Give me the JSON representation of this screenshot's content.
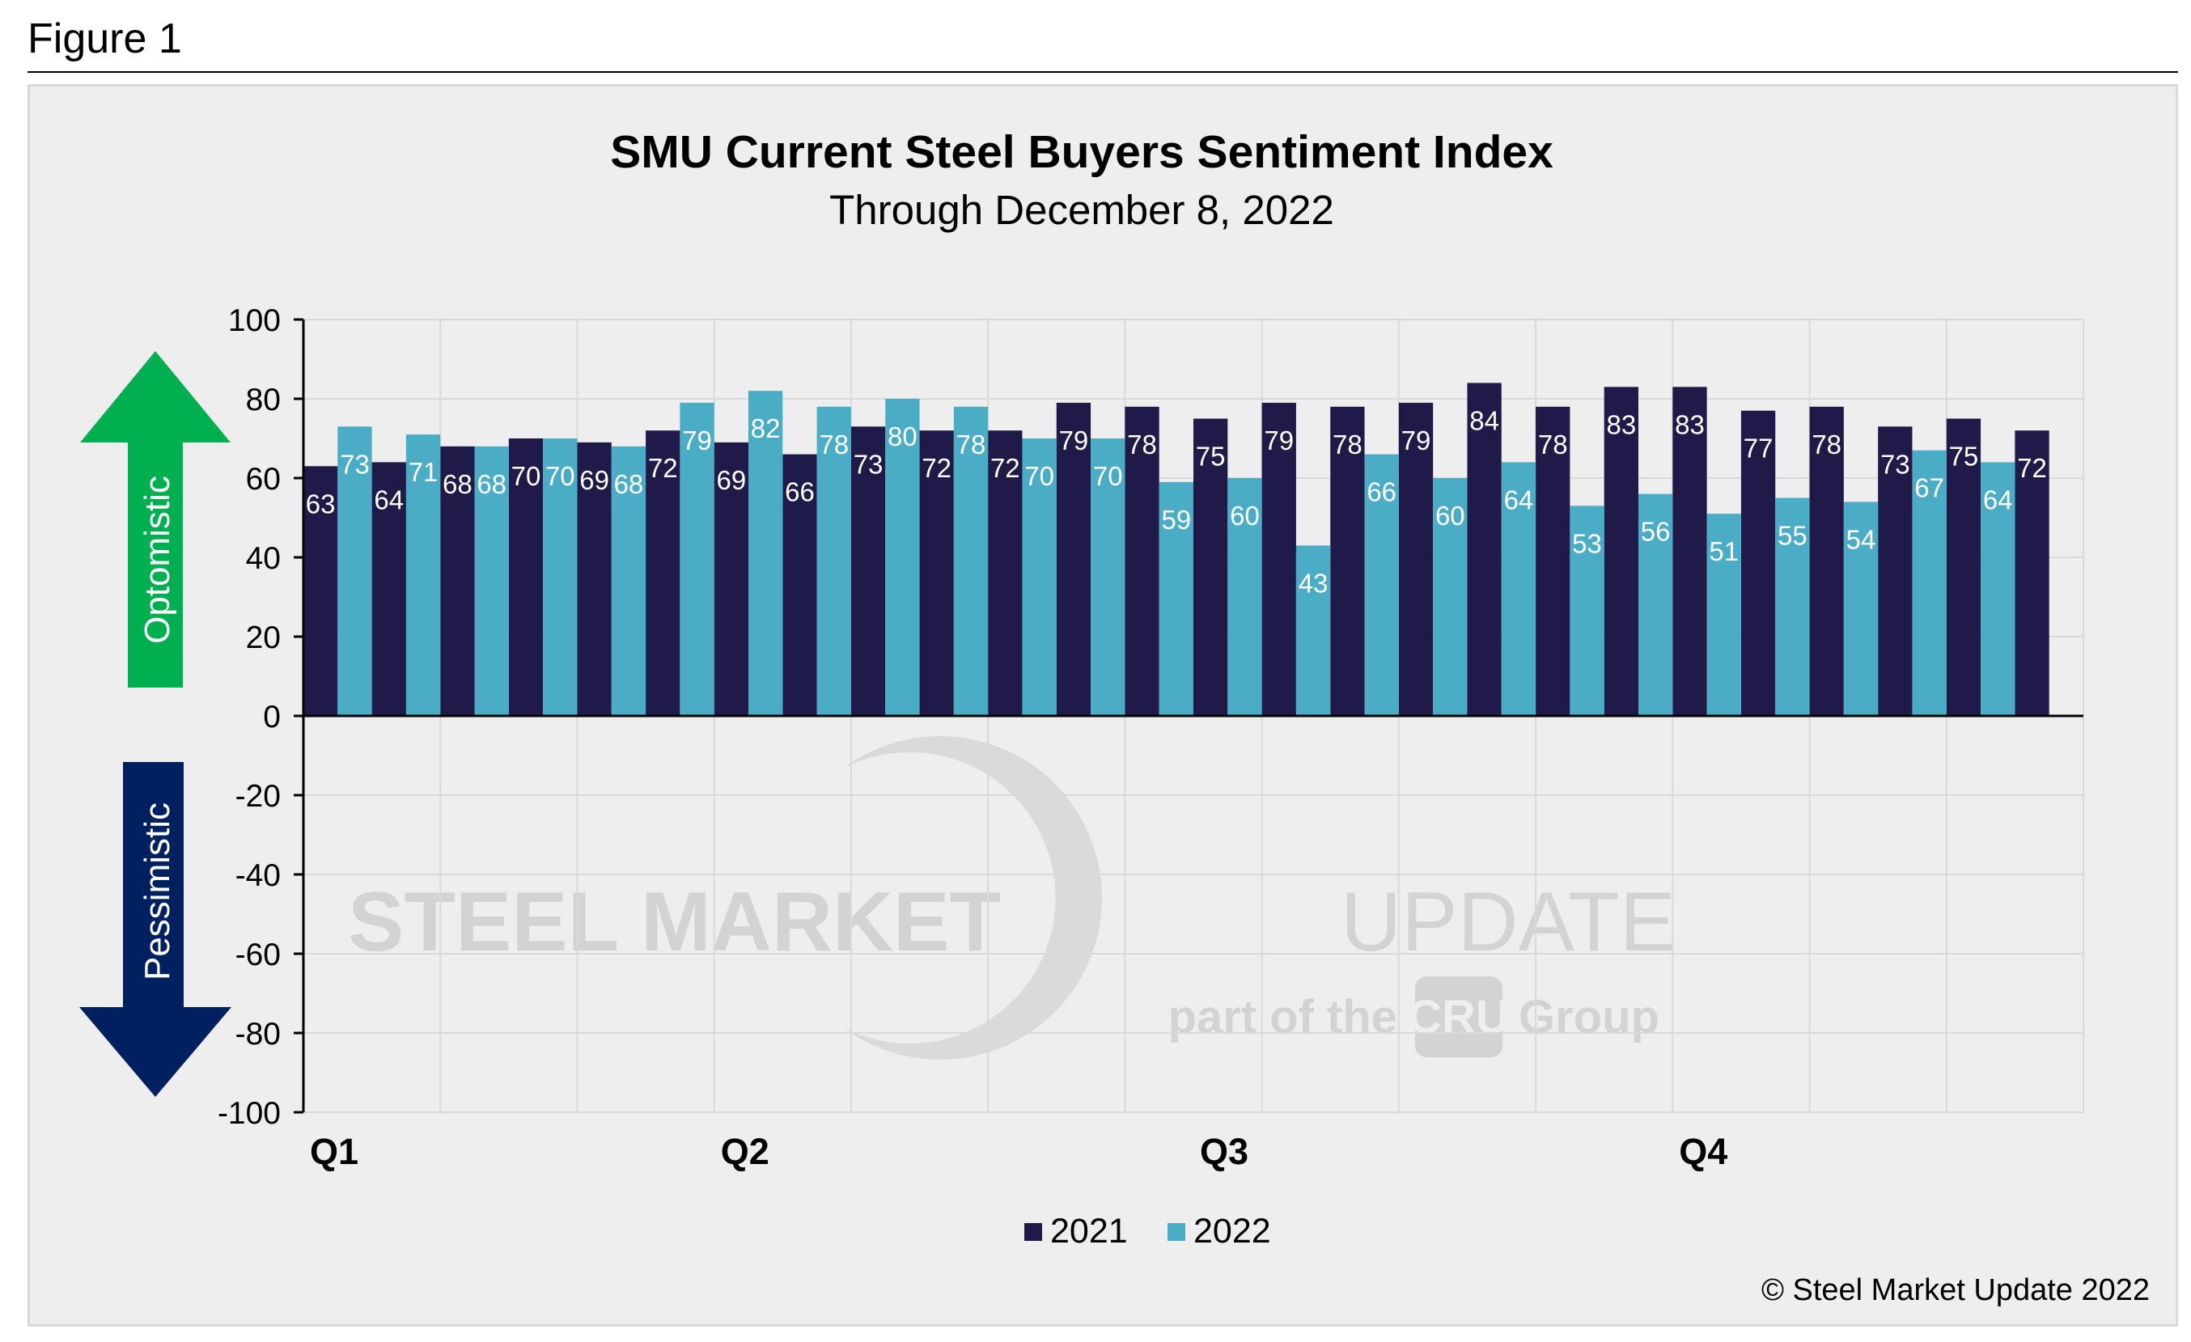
{
  "figure_label": "Figure 1",
  "copyright": "© Steel Market Update 2022",
  "watermark": {
    "line1_bold": "STEEL MARKET",
    "line1_light": "UPDATE",
    "line2_pre": "part of the",
    "line2_logo": "CRU",
    "line2_post": "Group"
  },
  "arrows": {
    "up_label": "Optomistic",
    "up_color": "#00b050",
    "down_label": "Pessimistic",
    "down_color": "#002060"
  },
  "colors": {
    "series_2021": "#1f1a48",
    "series_2022": "#4bacc6",
    "background": "#eeeeee",
    "grid": "#d9d9d9"
  },
  "chart_data": {
    "type": "bar",
    "title": "SMU Current Steel Buyers Sentiment Index",
    "subtitle": "Through December 8, 2022",
    "xlabel": "",
    "ylabel": "",
    "ylim": [
      -100,
      100
    ],
    "yticks": [
      100,
      80,
      60,
      40,
      20,
      0,
      -20,
      -40,
      -60,
      -80,
      -100
    ],
    "quarter_labels": [
      {
        "label": "Q1",
        "at_pair": 0
      },
      {
        "label": "Q2",
        "at_pair": 6
      },
      {
        "label": "Q3",
        "at_pair": 13
      },
      {
        "label": "Q4",
        "at_pair": 20
      }
    ],
    "grid": true,
    "legend_position": "bottom",
    "series": [
      {
        "name": "2021",
        "values": [
          63,
          64,
          68,
          70,
          69,
          72,
          69,
          66,
          73,
          72,
          72,
          79,
          78,
          75,
          79,
          78,
          79,
          84,
          78,
          83,
          83,
          77,
          78,
          73,
          75,
          72
        ]
      },
      {
        "name": "2022",
        "values": [
          73,
          71,
          68,
          70,
          68,
          79,
          82,
          78,
          80,
          78,
          70,
          70,
          59,
          60,
          43,
          66,
          60,
          64,
          53,
          56,
          51,
          55,
          54,
          67,
          64,
          null
        ]
      }
    ]
  }
}
